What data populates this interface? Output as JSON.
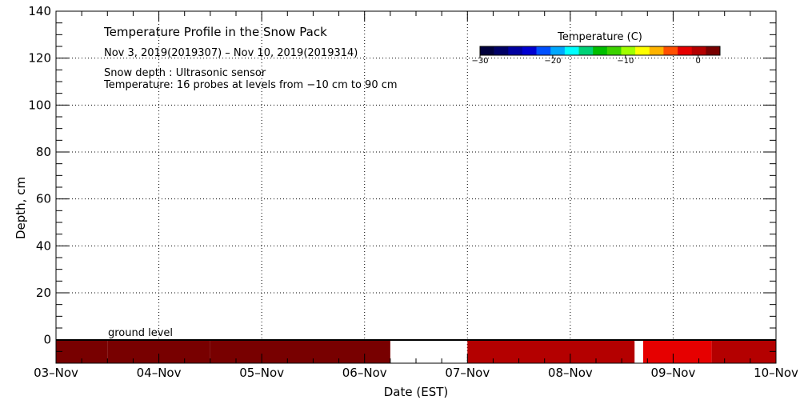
{
  "chart_data": {
    "type": "heatmap",
    "title": "Temperature Profile in the Snow Pack",
    "subtitle": "Nov  3, 2019(2019307) – Nov 10, 2019(2019314)",
    "notes": [
      "Snow depth : Ultrasonic sensor",
      "Temperature: 16 probes at levels from −10 cm to 90 cm"
    ],
    "ground_label": "ground level",
    "xlabel": "Date (EST)",
    "ylabel": "Depth, cm",
    "x_ticks": [
      "03–Nov",
      "04–Nov",
      "05–Nov",
      "06–Nov",
      "07–Nov",
      "08–Nov",
      "09–Nov",
      "10–Nov"
    ],
    "y_ticks": [
      "0",
      "20",
      "40",
      "60",
      "80",
      "100",
      "120",
      "140"
    ],
    "xlim": [
      "2019-11-03",
      "2019-11-10"
    ],
    "ylim": [
      -10,
      140
    ],
    "grid": true,
    "colorbar": {
      "title": "Temperature (C)",
      "range": [
        -30,
        3
      ],
      "tick_labels": [
        "−30",
        "−20",
        "−10",
        "0"
      ],
      "tick_values": [
        -30,
        -20,
        -10,
        0
      ],
      "colors": [
        "#00003c",
        "#000066",
        "#0000a0",
        "#0000d2",
        "#0050ff",
        "#00a8ff",
        "#00ffff",
        "#00d278",
        "#00be00",
        "#3cd200",
        "#a0ff00",
        "#ffff00",
        "#ffb400",
        "#ff5000",
        "#e60000",
        "#b40000",
        "#780000"
      ]
    },
    "snow_depth": "not shown",
    "temperature_bands": [
      {
        "start": "2019-11-03T00:00",
        "end": "2019-11-03T12:00",
        "temp_c": 1.5
      },
      {
        "start": "2019-11-03T12:00",
        "end": "2019-11-04T12:00",
        "temp_c": 2.5
      },
      {
        "start": "2019-11-04T12:00",
        "end": "2019-11-06T06:00",
        "temp_c": 3.0
      },
      {
        "start": "2019-11-06T06:00",
        "end": "2019-11-07T00:00",
        "temp_c": null
      },
      {
        "start": "2019-11-07T00:00",
        "end": "2019-11-08T15:00",
        "temp_c": 1.0
      },
      {
        "start": "2019-11-08T15:00",
        "end": "2019-11-08T17:00",
        "temp_c": null
      },
      {
        "start": "2019-11-08T17:00",
        "end": "2019-11-09T09:00",
        "temp_c": -1.5
      },
      {
        "start": "2019-11-09T09:00",
        "end": "2019-11-10T00:00",
        "temp_c": 0.5
      }
    ]
  }
}
